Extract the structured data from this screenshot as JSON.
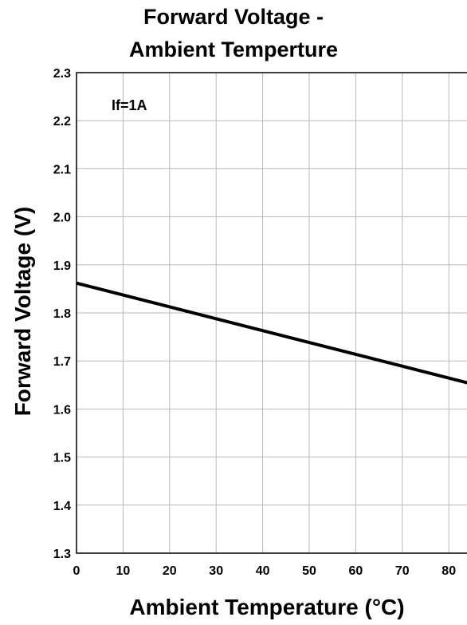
{
  "chart_data": {
    "type": "line",
    "title_lines": [
      "Forward Voltage -",
      "Ambient Temperture"
    ],
    "xlabel": "Ambient Temperature (°C)",
    "ylabel": "Forward Voltage (V)",
    "xlim": [
      0,
      85
    ],
    "ylim": [
      1.3,
      2.3
    ],
    "x_ticks": [
      "0",
      "10",
      "20",
      "30",
      "40",
      "50",
      "60",
      "70",
      "80"
    ],
    "y_ticks": [
      "1.3",
      "1.4",
      "1.5",
      "1.6",
      "1.7",
      "1.8",
      "1.9",
      "2.0",
      "2.1",
      "2.2",
      "2.3"
    ],
    "grid": true,
    "annotation": "If=1A",
    "series": [
      {
        "x": [
          0,
          85
        ],
        "y": [
          1.862,
          1.652
        ]
      }
    ]
  }
}
